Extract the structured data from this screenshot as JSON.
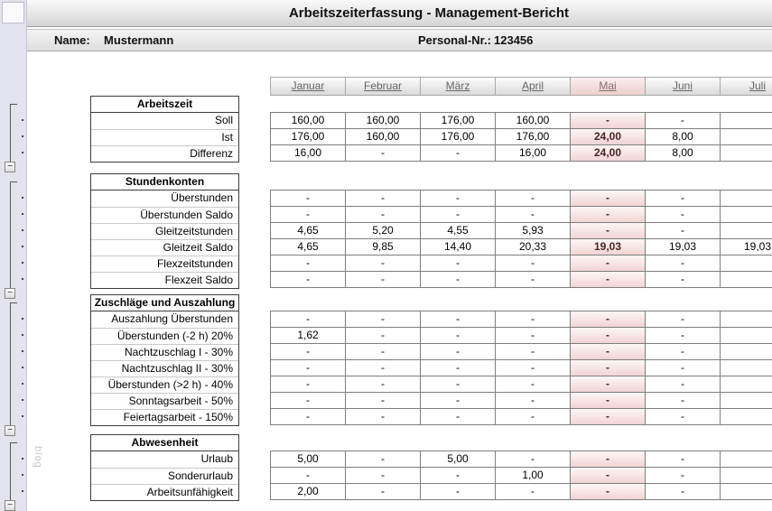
{
  "title": "Arbeitszeiterfassung - Management-Bericht",
  "info": {
    "name_label": "Name:",
    "name_value": "Mustermann",
    "personnel_label": "Personal-Nr.:",
    "personnel_value": "123456"
  },
  "watermark": "blog",
  "outline": {
    "collapse_glyph": "−"
  },
  "colors": {
    "highlight_bg": "#f2d4d4",
    "highlight_text": "#4a2424",
    "month_link": "#666666",
    "strip_bg": "#e3e3ee"
  },
  "months": [
    {
      "label": "Januar",
      "highlight": false
    },
    {
      "label": "Februar",
      "highlight": false
    },
    {
      "label": "März",
      "highlight": false
    },
    {
      "label": "April",
      "highlight": false
    },
    {
      "label": "Mai",
      "highlight": true
    },
    {
      "label": "Juni",
      "highlight": false
    },
    {
      "label": "Juli",
      "highlight": false
    }
  ],
  "sections": [
    {
      "header": "Arbeitszeit",
      "rows": [
        {
          "label": "Soll",
          "values": [
            "160,00",
            "160,00",
            "176,00",
            "160,00",
            "-",
            "-",
            ""
          ]
        },
        {
          "label": "Ist",
          "values": [
            "176,00",
            "160,00",
            "176,00",
            "176,00",
            "24,00",
            "8,00",
            ""
          ]
        },
        {
          "label": "Differenz",
          "values": [
            "16,00",
            "-",
            "-",
            "16,00",
            "24,00",
            "8,00",
            ""
          ]
        }
      ]
    },
    {
      "header": "Stundenkonten",
      "rows": [
        {
          "label": "Überstunden",
          "values": [
            "-",
            "-",
            "-",
            "-",
            "-",
            "-",
            ""
          ]
        },
        {
          "label": "Überstunden Saldo",
          "values": [
            "-",
            "-",
            "-",
            "-",
            "-",
            "-",
            ""
          ]
        },
        {
          "label": "Gleitzeitstunden",
          "values": [
            "4,65",
            "5,20",
            "4,55",
            "5,93",
            "-",
            "-",
            ""
          ]
        },
        {
          "label": "Gleitzeit Saldo",
          "values": [
            "4,65",
            "9,85",
            "14,40",
            "20,33",
            "19,03",
            "19,03",
            "19,03"
          ]
        },
        {
          "label": "Flexzeitstunden",
          "values": [
            "-",
            "-",
            "-",
            "-",
            "-",
            "-",
            ""
          ]
        },
        {
          "label": "Flexzeit Saldo",
          "values": [
            "-",
            "-",
            "-",
            "-",
            "-",
            "-",
            ""
          ]
        }
      ]
    },
    {
      "header": "Zuschläge und Auszahlung",
      "rows": [
        {
          "label": "Auszahlung Überstunden",
          "values": [
            "-",
            "-",
            "-",
            "-",
            "-",
            "-",
            ""
          ]
        },
        {
          "label": "Überstunden (-2 h) 20%",
          "values": [
            "1,62",
            "-",
            "-",
            "-",
            "-",
            "-",
            ""
          ]
        },
        {
          "label": "Nachtzuschlag I - 30%",
          "values": [
            "-",
            "-",
            "-",
            "-",
            "-",
            "-",
            ""
          ]
        },
        {
          "label": "Nachtzuschlag II - 30%",
          "values": [
            "-",
            "-",
            "-",
            "-",
            "-",
            "-",
            ""
          ]
        },
        {
          "label": "Überstunden (>2 h) - 40%",
          "values": [
            "-",
            "-",
            "-",
            "-",
            "-",
            "-",
            ""
          ]
        },
        {
          "label": "Sonntagsarbeit - 50%",
          "values": [
            "-",
            "-",
            "-",
            "-",
            "-",
            "-",
            ""
          ]
        },
        {
          "label": "Feiertagsarbeit - 150%",
          "values": [
            "-",
            "-",
            "-",
            "-",
            "-",
            "-",
            ""
          ]
        }
      ]
    },
    {
      "header": "Abwesenheit",
      "rows": [
        {
          "label": "Urlaub",
          "values": [
            "5,00",
            "-",
            "5,00",
            "-",
            "-",
            "-",
            ""
          ]
        },
        {
          "label": "Sonderurlaub",
          "values": [
            "-",
            "-",
            "-",
            "1,00",
            "-",
            "-",
            ""
          ]
        },
        {
          "label": "Arbeitsunfähigkeit",
          "values": [
            "2,00",
            "-",
            "-",
            "-",
            "-",
            "-",
            ""
          ]
        }
      ]
    }
  ]
}
